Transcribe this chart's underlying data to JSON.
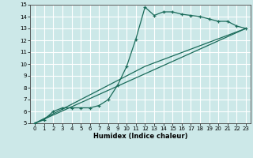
{
  "xlabel": "Humidex (Indice chaleur)",
  "bg_color": "#cce8e8",
  "grid_color": "#ffffff",
  "line_color": "#1a6b5a",
  "xlim": [
    -0.5,
    23.5
  ],
  "ylim": [
    5,
    15
  ],
  "xticks": [
    0,
    1,
    2,
    3,
    4,
    5,
    6,
    7,
    8,
    9,
    10,
    11,
    12,
    13,
    14,
    15,
    16,
    17,
    18,
    19,
    20,
    21,
    22,
    23
  ],
  "yticks": [
    5,
    6,
    7,
    8,
    9,
    10,
    11,
    12,
    13,
    14,
    15
  ],
  "line1_x": [
    0,
    1,
    2,
    3,
    4,
    5,
    6,
    7,
    8,
    9,
    10,
    11,
    12,
    13,
    14,
    15,
    16,
    17,
    18,
    19,
    20,
    21,
    22,
    23
  ],
  "line1_y": [
    5.0,
    5.3,
    6.0,
    6.3,
    6.3,
    6.3,
    6.3,
    6.5,
    7.0,
    8.2,
    9.8,
    12.1,
    14.8,
    14.1,
    14.4,
    14.4,
    14.2,
    14.1,
    14.0,
    13.8,
    13.6,
    13.6,
    13.2,
    13.0
  ],
  "line2_x": [
    0,
    23
  ],
  "line2_y": [
    5.0,
    13.0
  ],
  "line3_x": [
    0,
    12,
    23
  ],
  "line3_y": [
    5.0,
    9.8,
    13.0
  ]
}
